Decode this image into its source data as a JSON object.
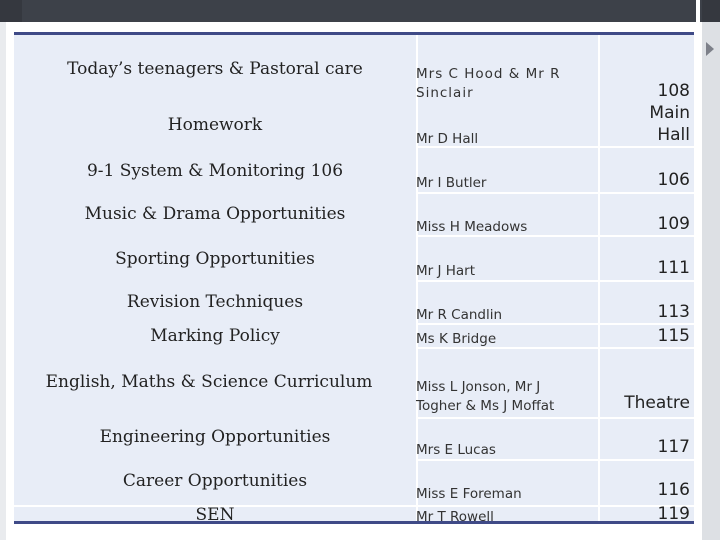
{
  "rows": [
    {
      "topic": "Today’s teenagers & Pastoral care",
      "staff": "Mrs C Hood & Mr R Sinclair",
      "room": ""
    },
    {
      "topic": "Homework",
      "staff": "Mr D Hall",
      "room_lines": [
        "108",
        "Main",
        "Hall"
      ]
    },
    {
      "topic": "9-1 System & Monitoring  106",
      "staff": "Mr I Butler",
      "room": "106"
    },
    {
      "topic": "Music & Drama Opportunities",
      "staff": "Miss H Meadows",
      "room": "109"
    },
    {
      "topic": "Sporting Opportunities",
      "staff": "Mr J Hart",
      "room": "111"
    },
    {
      "topic": "Revision Techniques",
      "staff": "Mr R Candlin",
      "room": "113"
    },
    {
      "topic": "Marking Policy",
      "staff": "Ms K Bridge",
      "room": "115"
    },
    {
      "topic": "English, Maths & Science  Curriculum",
      "staff_lines": [
        "Miss L Jonson, Mr J",
        "Togher & Ms J Moffat"
      ],
      "room": "Theatre"
    },
    {
      "topic": "Engineering Opportunities",
      "staff": "Mrs E Lucas",
      "room": "117"
    },
    {
      "topic": "Career Opportunities",
      "staff": "Miss E Foreman",
      "room": "116"
    },
    {
      "topic": "SEN",
      "staff": "Mr T Rowell",
      "room": "119"
    }
  ]
}
